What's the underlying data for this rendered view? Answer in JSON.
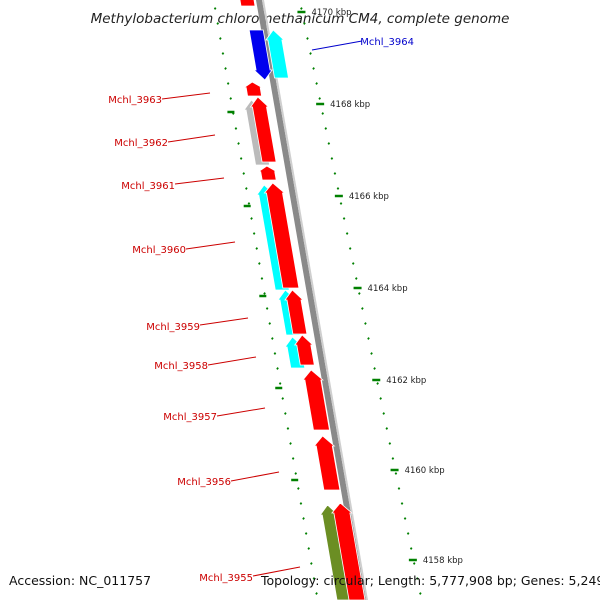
{
  "title": "Methylobacterium chloromethanicum CM4, complete genome",
  "footer": {
    "accession": "Accession: NC_011757",
    "topology": "Topology: circular; Length: 5,777,908 bp; Genes: 5,249"
  },
  "colors": {
    "backbone": "#8a8a8a",
    "forward_gene": "#ff0000",
    "reverse_gene": "#00ffff",
    "blue_gene": "#0000ee",
    "grey_gene": "#bbbbbb",
    "olive_gene": "#6b8e23",
    "tick": "#008000",
    "red_label": "#cc0000",
    "blue_label": "#0000cc"
  },
  "scale_labels": [
    "4170 kbp",
    "4168 kbp",
    "4166 kbp",
    "4164 kbp",
    "4162 kbp",
    "4160 kbp",
    "4158 kbp"
  ],
  "gene_labels": [
    {
      "text": "Mchl_3964",
      "color": "blue"
    },
    {
      "text": "Mchl_3963",
      "color": "red"
    },
    {
      "text": "Mchl_3962",
      "color": "red"
    },
    {
      "text": "Mchl_3961",
      "color": "red"
    },
    {
      "text": "Mchl_3960",
      "color": "red"
    },
    {
      "text": "Mchl_3959",
      "color": "red"
    },
    {
      "text": "Mchl_3958",
      "color": "red"
    },
    {
      "text": "Mchl_3957",
      "color": "red"
    },
    {
      "text": "Mchl_3956",
      "color": "red"
    },
    {
      "text": "Mchl_3955",
      "color": "red"
    }
  ]
}
